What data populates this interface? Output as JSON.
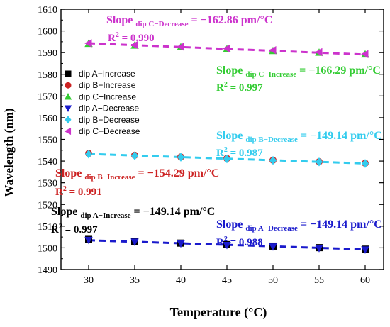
{
  "chart_data": {
    "type": "scatter",
    "xlabel": "Temperature (°C)",
    "ylabel": "Wavelength (nm)",
    "xlim": [
      27,
      62
    ],
    "ylim": [
      1490,
      1610
    ],
    "xticks": [
      30,
      35,
      40,
      45,
      50,
      55,
      60
    ],
    "yticks": [
      1490,
      1500,
      1510,
      1520,
      1530,
      1540,
      1550,
      1560,
      1570,
      1580,
      1590,
      1600,
      1610
    ],
    "grid": false,
    "legend_position": "top-left",
    "x": [
      30,
      35,
      40,
      45,
      50,
      55,
      60
    ],
    "series": [
      {
        "name": "dip A−Increase",
        "marker": "square",
        "color": "#000000",
        "values": [
          1503.9,
          1503.0,
          1502.2,
          1501.5,
          1500.8,
          1500.1,
          1499.4
        ]
      },
      {
        "name": "dip B−Increase",
        "marker": "circle",
        "color": "#cc2222",
        "values": [
          1543.5,
          1542.7,
          1541.9,
          1541.2,
          1540.4,
          1539.7,
          1539.0
        ]
      },
      {
        "name": "dip C−Increase",
        "marker": "triangle-up",
        "color": "#33cc33",
        "values": [
          1594.1,
          1593.3,
          1592.5,
          1591.6,
          1590.8,
          1590.0,
          1589.2
        ]
      },
      {
        "name": "dip A−Decrease",
        "marker": "triangle-down",
        "color": "#1a1acc",
        "values": [
          1503.6,
          1502.8,
          1502.0,
          1501.3,
          1500.6,
          1499.9,
          1499.2
        ]
      },
      {
        "name": "dip B−Decrease",
        "marker": "diamond",
        "color": "#33ccee",
        "values": [
          1543.2,
          1542.5,
          1541.8,
          1541.0,
          1540.3,
          1539.6,
          1538.9
        ]
      },
      {
        "name": "dip C−Decrease",
        "marker": "triangle-left",
        "color": "#cc33cc",
        "values": [
          1594.3,
          1593.5,
          1592.7,
          1591.9,
          1591.1,
          1590.2,
          1589.3
        ]
      }
    ],
    "fit_lines": [
      {
        "series": "dip A",
        "color": "#1a1acc",
        "y_start": 1503.5,
        "y_end": 1499.3
      },
      {
        "series": "dip B",
        "color": "#33ccee",
        "y_start": 1543.3,
        "y_end": 1538.9
      },
      {
        "series": "dip C",
        "color": "#cc33cc",
        "y_start": 1594.3,
        "y_end": 1589.1
      }
    ],
    "annotations": [
      {
        "id": "c-dec",
        "color": "#cc33cc",
        "slope_prefix": "Slope ",
        "slope_sub": "dip C−Decrease",
        "slope_value": " = −162.86 pm/°C",
        "r2_label": "R",
        "r2_sup": "2",
        "r2_value": " = 0.990"
      },
      {
        "id": "c-inc",
        "color": "#33cc33",
        "slope_prefix": "Slope ",
        "slope_sub": "dip C−Increase",
        "slope_value": " = −166.29 pm/°C",
        "r2_label": "R",
        "r2_sup": "2",
        "r2_value": " = 0.997"
      },
      {
        "id": "b-dec",
        "color": "#33ccee",
        "slope_prefix": "Slope ",
        "slope_sub": "dip B−Decrease",
        "slope_value": " = −149.14 pm/°C",
        "r2_label": "R",
        "r2_sup": "2",
        "r2_value": " = 0.987"
      },
      {
        "id": "b-inc",
        "color": "#cc2222",
        "slope_prefix": "Slope ",
        "slope_sub": "dip B−Increase",
        "slope_value": " = −154.29 pm/°C",
        "r2_label": "R",
        "r2_sup": "2",
        "r2_value": " = 0.991"
      },
      {
        "id": "a-inc",
        "color": "#000000",
        "slope_prefix": "Slope ",
        "slope_sub": "dip A−Increase",
        "slope_value": " = −149.14 pm/°C",
        "r2_label": "R",
        "r2_sup": "2",
        "r2_value": " = 0.997"
      },
      {
        "id": "a-dec",
        "color": "#1a1acc",
        "slope_prefix": "Slope ",
        "slope_sub": "dip A−Decrease",
        "slope_value": " = −149.14 pm/°C",
        "r2_label": "R",
        "r2_sup": "2",
        "r2_value": " = 0.988"
      }
    ]
  }
}
